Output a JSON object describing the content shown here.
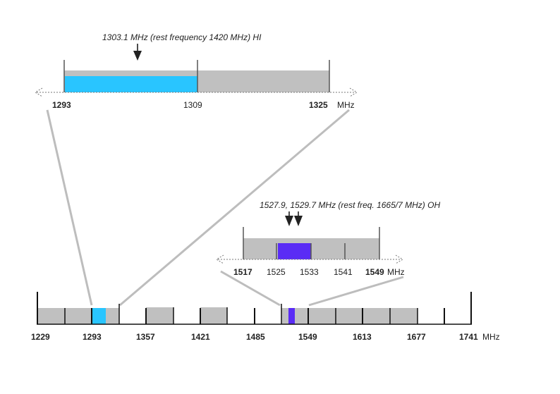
{
  "top_zoom": {
    "annotation": "1303.1 MHz (rest frequency 1420 MHz) HI",
    "tick_labels": {
      "left": "1293",
      "mid": "1309",
      "right": "1325"
    },
    "unit": "MHz",
    "highlight_color": "#29c5ff",
    "band_color": "#c0c0c0"
  },
  "mid_zoom": {
    "annotation": "1527.9, 1529.7 MHz (rest freq. 1665/7 MHz) OH",
    "tick_labels": [
      "1517",
      "1525",
      "1533",
      "1541",
      "1549"
    ],
    "unit": "MHz",
    "highlight_color": "#5a2cf5",
    "band_color": "#c0c0c0"
  },
  "main_axis": {
    "tick_labels": [
      "1229",
      "1293",
      "1357",
      "1421",
      "1485",
      "1549",
      "1613",
      "1677",
      "1741"
    ],
    "unit": "MHz"
  },
  "colors": {
    "axis": "#111111",
    "connector": "#bdbdbd",
    "band": "#c0c0c0",
    "hi": "#29c5ff",
    "oh": "#5a2cf5"
  }
}
